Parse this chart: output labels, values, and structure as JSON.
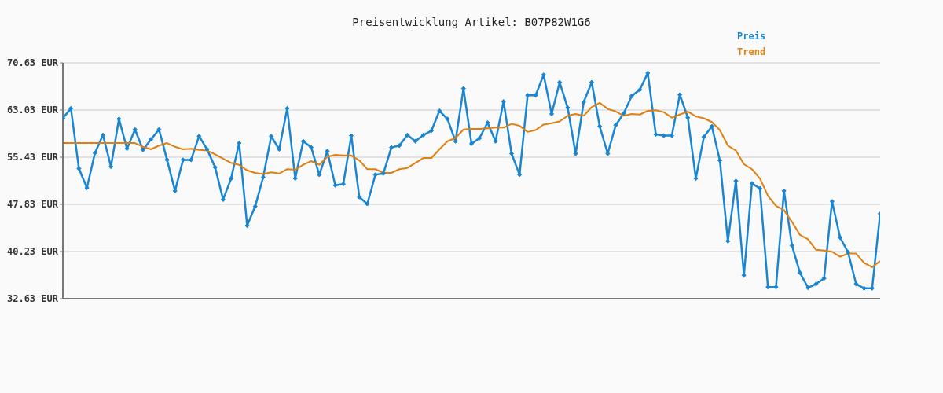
{
  "chart_data": {
    "type": "line",
    "title": "Preisentwicklung Artikel: B07P82W1G6",
    "categories": [
      null,
      null,
      null,
      null,
      null,
      null,
      null,
      null,
      null,
      null,
      null,
      null,
      null,
      null,
      null,
      null,
      null,
      null,
      null,
      null,
      null,
      null,
      null,
      null,
      null,
      null,
      null,
      null,
      null,
      null,
      null,
      null,
      null,
      null,
      null,
      null,
      null,
      null,
      null,
      null,
      null,
      null,
      null,
      null,
      null,
      null,
      null,
      null,
      null,
      null,
      null,
      null,
      null,
      null,
      null,
      null,
      null,
      null,
      null,
      null,
      null,
      null,
      null,
      null,
      null,
      null,
      null,
      null,
      null,
      null,
      null,
      null,
      null,
      null,
      null,
      null,
      null,
      null,
      null,
      null,
      null,
      null,
      null,
      null,
      null,
      null,
      null,
      null,
      null,
      null,
      null,
      null,
      null,
      null,
      null,
      null,
      null,
      null,
      null,
      null,
      null,
      null,
      null
    ],
    "series": [
      {
        "name": "Preis",
        "color": "#1a85d0",
        "marker": "diamond",
        "values": [
          61.7,
          63.3,
          53.6,
          50.5,
          56.1,
          59.0,
          53.9,
          61.6,
          56.8,
          59.9,
          56.6,
          58.3,
          59.9,
          55.0,
          50.0,
          55.0,
          55.0,
          58.8,
          56.7,
          53.8,
          48.6,
          52.0,
          57.7,
          44.4,
          47.5,
          52.2,
          58.8,
          56.7,
          63.3,
          52.0,
          58.0,
          57.0,
          52.6,
          56.4,
          50.9,
          51.1,
          58.9,
          49.0,
          47.9,
          52.6,
          52.8,
          57.0,
          57.3,
          59.0,
          58.0,
          59.0,
          59.7,
          62.9,
          61.6,
          58.0,
          66.5,
          57.6,
          58.5,
          61.0,
          58.0,
          64.4,
          56.0,
          52.6,
          65.4,
          65.4,
          68.7,
          62.4,
          67.5,
          63.4,
          56.0,
          64.3,
          67.5,
          60.4,
          56.0,
          60.6,
          62.5,
          65.3,
          66.3,
          69.0,
          59.1,
          58.9,
          58.9,
          65.5,
          61.8,
          52.0,
          58.7,
          60.4,
          54.9,
          41.9,
          51.6,
          36.4,
          51.2,
          50.4,
          34.5,
          34.5,
          50.0,
          41.2,
          36.8,
          34.4,
          35.0,
          35.9,
          48.3,
          42.5,
          40.1,
          35.0,
          34.3,
          34.3,
          46.3
        ]
      },
      {
        "name": "Trend",
        "color": "#e07f10",
        "marker": "none",
        "values": [
          57.7,
          57.7,
          57.7,
          57.7,
          57.7,
          57.7,
          57.7,
          57.7,
          57.7,
          57.7,
          57.1,
          56.7,
          57.3,
          57.7,
          57.1,
          56.7,
          56.8,
          56.6,
          56.5,
          55.9,
          55.2,
          54.5,
          54.2,
          53.3,
          52.9,
          52.7,
          53.0,
          52.8,
          53.5,
          53.4,
          54.2,
          54.8,
          54.2,
          55.5,
          55.8,
          55.7,
          55.7,
          54.9,
          53.5,
          53.5,
          52.9,
          52.9,
          53.5,
          53.7,
          54.5,
          55.3,
          55.3,
          56.7,
          58.0,
          58.5,
          59.9,
          60.0,
          60.0,
          60.1,
          60.2,
          60.2,
          60.8,
          60.5,
          59.5,
          59.8,
          60.7,
          60.9,
          61.2,
          62.1,
          62.4,
          62.1,
          63.5,
          64.2,
          63.2,
          62.8,
          62.1,
          62.4,
          62.3,
          62.9,
          63.0,
          62.7,
          61.8,
          62.3,
          62.8,
          62.0,
          61.7,
          61.1,
          59.8,
          57.3,
          56.5,
          54.3,
          53.5,
          52.0,
          49.2,
          47.6,
          46.9,
          45.0,
          42.9,
          42.2,
          40.5,
          40.4,
          40.2,
          39.4,
          39.9,
          39.9,
          38.4,
          37.7,
          38.7
        ]
      }
    ],
    "ylim": [
      32.63,
      70.63
    ],
    "yticks": [
      {
        "value": 32.63,
        "label": "32.63 EUR"
      },
      {
        "value": 40.23,
        "label": "40.23 EUR"
      },
      {
        "value": 47.83,
        "label": "47.83 EUR"
      },
      {
        "value": 55.43,
        "label": "55.43 EUR"
      },
      {
        "value": 63.03,
        "label": "63.03 EUR"
      },
      {
        "value": 70.63,
        "label": "70.63 EUR"
      }
    ],
    "grid": "y",
    "legend": "top right"
  }
}
